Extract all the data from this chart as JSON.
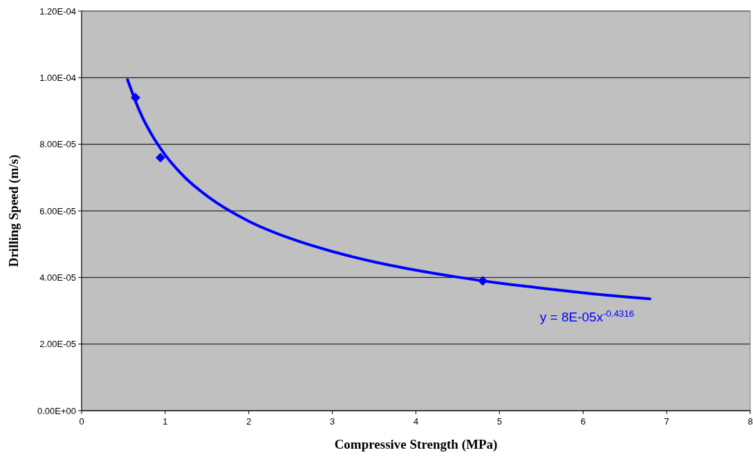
{
  "chart_data": {
    "type": "scatter",
    "xlabel": "Compressive Strength (MPa)",
    "ylabel": "Drilling Speed (m/s)",
    "xlim": [
      0,
      8
    ],
    "xticks": [
      0,
      1,
      2,
      3,
      4,
      5,
      6,
      7,
      8
    ],
    "ylim": [
      0,
      0.00012
    ],
    "yticks": [
      {
        "value": 0,
        "label": "0.00E+00"
      },
      {
        "value": 2e-05,
        "label": "2.00E-05"
      },
      {
        "value": 4e-05,
        "label": "4.00E-05"
      },
      {
        "value": 6e-05,
        "label": "6.00E-05"
      },
      {
        "value": 8e-05,
        "label": "8.00E-05"
      },
      {
        "value": 0.0001,
        "label": "1.00E-04"
      },
      {
        "value": 0.00012,
        "label": "1.20E-04"
      }
    ],
    "grid": "y",
    "series": [
      {
        "type": "line",
        "color": "#0000ff",
        "marker": "none",
        "line_style": "solid",
        "x": [
          0.55,
          0.7,
          0.85,
          1,
          1.25,
          1.5,
          2,
          2.5,
          3,
          3.5,
          4,
          4.5,
          5,
          5.5,
          6,
          6.5,
          6.8
        ],
        "values": [
          9.94e-05,
          8.96e-05,
          8.24e-05,
          7.68e-05,
          6.97e-05,
          6.45e-05,
          5.69e-05,
          5.17e-05,
          4.78e-05,
          4.47e-05,
          4.22e-05,
          4.01e-05,
          3.83e-05,
          3.68e-05,
          3.54e-05,
          3.42e-05,
          3.36e-05
        ]
      },
      {
        "color": "#0000ff",
        "marker": "diamond",
        "x": [
          0.645,
          0.943,
          4.8
        ],
        "values": [
          9.4e-05,
          7.6e-05,
          3.9e-05
        ]
      }
    ],
    "annotations": [
      "y = 8E-05x$^{-0.4316}$"
    ]
  }
}
